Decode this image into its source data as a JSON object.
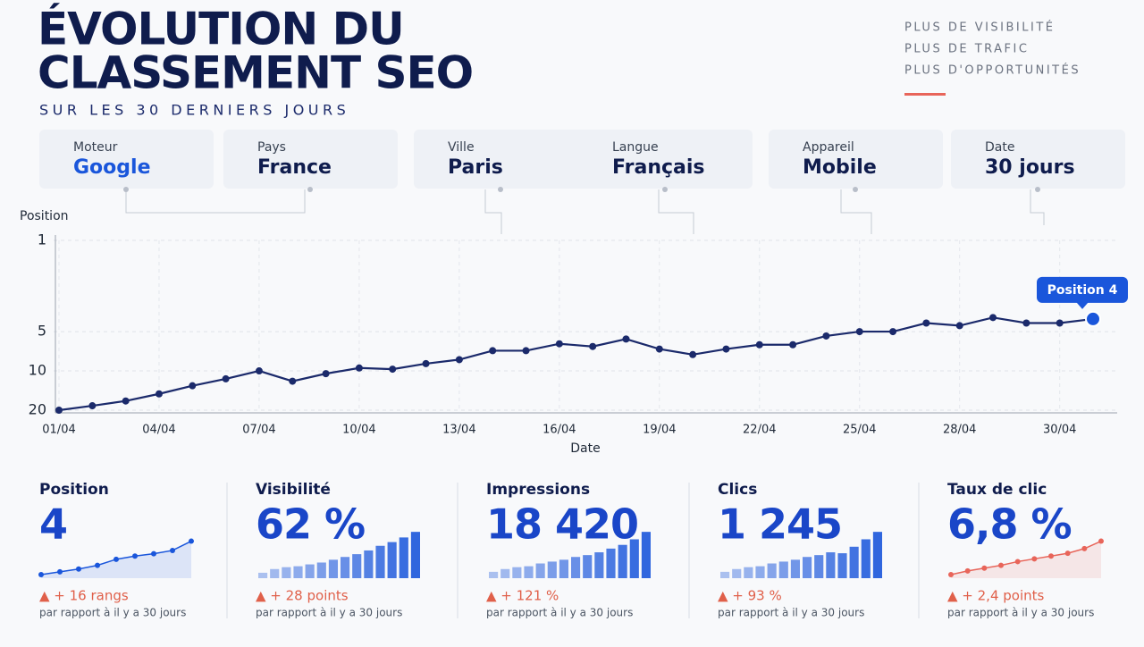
{
  "header": {
    "title_lines": [
      "ÉVOLUTION DU",
      "CLASSEMENT SEO"
    ],
    "subtitle": "SUR LES 30 DERNIERS JOURS",
    "taglines": [
      "PLUS DE VISIBILITÉ",
      "PLUS DE TRAFIC",
      "PLUS D'OPPORTUNITÉS"
    ]
  },
  "filters": [
    {
      "label": "Moteur",
      "value": "Google"
    },
    {
      "label": "Pays",
      "value": "France"
    },
    {
      "label": "Ville",
      "value": "Paris"
    },
    {
      "label": "Langue",
      "value": "Français"
    },
    {
      "label": "Appareil",
      "value": "Mobile"
    },
    {
      "label": "Date",
      "value": "30 jours"
    }
  ],
  "chart_data": {
    "type": "line",
    "y_label": "Position",
    "x_label": "Date",
    "categories": [
      "01/04",
      null,
      null,
      "04/04",
      null,
      null,
      "07/04",
      null,
      null,
      "10/04",
      null,
      null,
      "13/04",
      null,
      null,
      "16/04",
      null,
      null,
      "19/04",
      null,
      null,
      "22/04",
      null,
      null,
      "25/04",
      null,
      null,
      "28/04",
      null,
      null,
      "30/04",
      null
    ],
    "series": [
      {
        "name": "Position",
        "color": "#1b2a6b",
        "values": [
          20,
          18.5,
          17,
          15,
          13,
          11.5,
          10,
          12,
          10.5,
          9.5,
          9.7,
          8.8,
          8.2,
          7,
          7,
          6.2,
          6.5,
          5.7,
          6.8,
          7.5,
          6.8,
          6.3,
          6.3,
          5.4,
          5,
          5,
          4.3,
          4.5,
          3.9,
          4.3,
          4.3,
          4
        ]
      }
    ],
    "ylim": [
      1,
      20
    ],
    "yticks": [
      1,
      5,
      10,
      20
    ],
    "yscale": "log",
    "y_inverted": true,
    "grid": true,
    "annotation": {
      "text": "Position 4",
      "index": 31,
      "color": "#1a56db"
    }
  },
  "kpis": [
    {
      "title": "Position",
      "value": "4",
      "change": "▲ + 16 rangs",
      "note": "par rapport à il y a 30 jours",
      "spark_type": "line",
      "spark_color": "#1a56db",
      "spark": [
        0,
        6,
        12,
        20,
        33,
        40,
        45,
        52,
        72
      ]
    },
    {
      "title": "Visibilité",
      "value": "62 %",
      "change": "▲ + 28 points",
      "note": "par rapport à il y a 30 jours",
      "spark_type": "bar",
      "spark_color": "#1a56db",
      "spark": [
        4,
        12,
        16,
        18,
        22,
        26,
        32,
        38,
        44,
        52,
        62,
        70,
        80,
        92
      ]
    },
    {
      "title": "Impressions",
      "value": "18 420",
      "change": "▲ + 121 %",
      "note": "par rapport à il y a 30 jours",
      "spark_type": "bar",
      "spark_color": "#1a56db",
      "spark": [
        6,
        12,
        16,
        18,
        24,
        28,
        32,
        38,
        42,
        48,
        56,
        64,
        76,
        92
      ]
    },
    {
      "title": "Clics",
      "value": "1 245",
      "change": "▲ + 93 %",
      "note": "par rapport à il y a 30 jours",
      "spark_type": "bar",
      "spark_color": "#1a56db",
      "spark": [
        6,
        12,
        16,
        18,
        24,
        28,
        32,
        38,
        42,
        48,
        46,
        60,
        76,
        92
      ]
    },
    {
      "title": "Taux de clic",
      "value": "6,8 %",
      "change": "▲ + 2,4 points",
      "note": "par rapport à il y a 30 jours",
      "spark_type": "line",
      "spark_color": "#e8655a",
      "spark": [
        0,
        8,
        14,
        20,
        28,
        34,
        40,
        46,
        56,
        72
      ]
    }
  ]
}
